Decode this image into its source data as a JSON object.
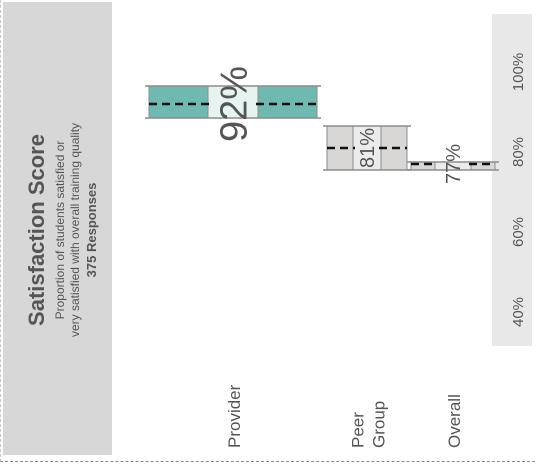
{
  "title_panel": {
    "title": "Satisfaction Score",
    "subtitle_line1": "Proportion of students satisfied or",
    "subtitle_line2": "very satisfied with overall training quality",
    "responses": "375 Responses"
  },
  "colors": {
    "panel_bg": "#d7d7d7",
    "axis_strip_bg": "#e8e8e8",
    "provider_fill": "#6fb9b0",
    "provider_band": "#e6f3f1",
    "comparator_fill": "#d9d6d6",
    "comparator_band": "#ecebeb",
    "box_border": "#8c8c8c",
    "median_line": "#111111",
    "text": "#555555"
  },
  "chart_data": {
    "type": "box",
    "orientation": "rotated-90",
    "value_axis": {
      "min": 30,
      "max": 105,
      "ticks": [
        40,
        60,
        80,
        100
      ],
      "tick_labels": [
        "40%",
        "60%",
        "80%",
        "100%"
      ]
    },
    "categories": [
      "Provider",
      "Peer Group",
      "Overall"
    ],
    "category_labels": [
      [
        "Provider"
      ],
      [
        "Peer",
        "Group"
      ],
      [
        "Overall"
      ]
    ],
    "boxes": [
      {
        "category": "Provider",
        "low": 88.5,
        "high": 96.5,
        "median": 92,
        "label": "92%"
      },
      {
        "category": "Peer Group",
        "low": 75.5,
        "high": 86.5,
        "median": 81,
        "label": "81%"
      },
      {
        "category": "Overall",
        "low": 75.5,
        "high": 77.5,
        "median": 77,
        "label": "77%"
      }
    ]
  }
}
